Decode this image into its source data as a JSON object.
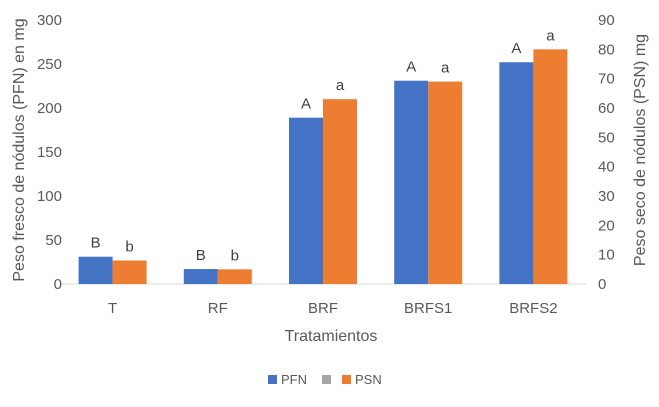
{
  "chart_data": {
    "type": "bar",
    "categories": [
      "T",
      "RF",
      "BRF",
      "BRFS1",
      "BRFS2"
    ],
    "xlabel": "Tratamientos",
    "ylabel_left": "Peso fresco de nódulos (PFN) en mg",
    "ylabel_right": "Peso seco de nódulos (PSN) mg",
    "ylim_left": [
      0,
      300
    ],
    "yticks_left": [
      0,
      50,
      100,
      150,
      200,
      250,
      300
    ],
    "ylim_right": [
      0,
      90
    ],
    "yticks_right": [
      0,
      10,
      20,
      30,
      40,
      50,
      60,
      70,
      80,
      90
    ],
    "grid": false,
    "legend_position": "bottom",
    "legend": [
      "PFN",
      "",
      "PSN"
    ],
    "legend_colors": [
      "#4472c4",
      "#a5a5a5",
      "#ed7d31"
    ],
    "series": [
      {
        "name": "PFN",
        "axis": "left",
        "color": "#4472c4",
        "values": [
          31,
          17,
          189,
          231,
          252
        ],
        "labels": [
          "B",
          "B",
          "A",
          "A",
          "A"
        ]
      },
      {
        "name": "PSN",
        "axis": "right",
        "color": "#ed7d31",
        "values": [
          8,
          5,
          63,
          69,
          80
        ],
        "labels": [
          "b",
          "b",
          "a",
          "a",
          "a"
        ]
      }
    ]
  }
}
